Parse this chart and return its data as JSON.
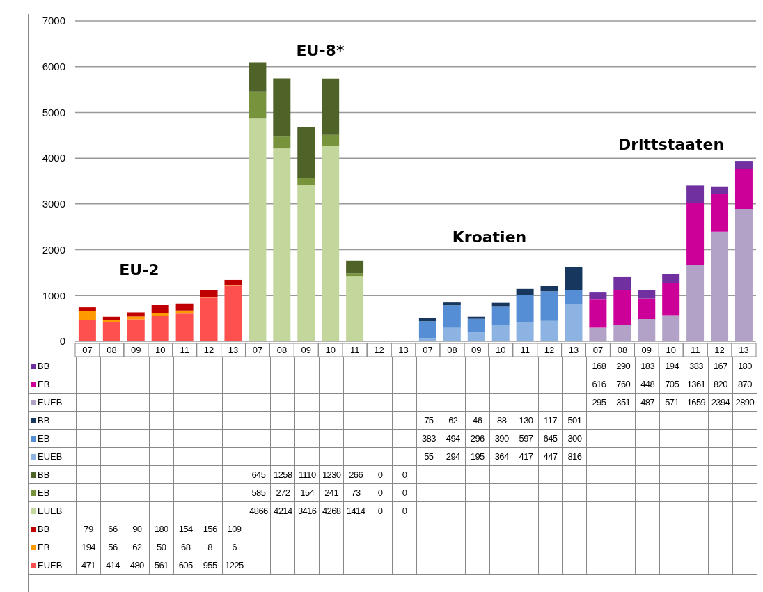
{
  "chart_data": {
    "type": "bar",
    "stacked": true,
    "categories": [
      "07",
      "08",
      "09",
      "10",
      "11",
      "12",
      "13",
      "07",
      "08",
      "09",
      "10",
      "11",
      "12",
      "13",
      "07",
      "08",
      "09",
      "10",
      "11",
      "12",
      "13",
      "07",
      "08",
      "09",
      "10",
      "11",
      "12",
      "13"
    ],
    "series": [
      {
        "name": "EUEB",
        "color": "#ff5050",
        "values": [
          471,
          414,
          480,
          561,
          605,
          955,
          1225,
          null,
          null,
          null,
          null,
          null,
          null,
          null,
          null,
          null,
          null,
          null,
          null,
          null,
          null,
          null,
          null,
          null,
          null,
          null,
          null,
          null
        ]
      },
      {
        "name": "EB",
        "color": "#ff9900",
        "values": [
          194,
          56,
          62,
          50,
          68,
          8,
          6,
          null,
          null,
          null,
          null,
          null,
          null,
          null,
          null,
          null,
          null,
          null,
          null,
          null,
          null,
          null,
          null,
          null,
          null,
          null,
          null,
          null
        ]
      },
      {
        "name": "BB",
        "color": "#c00000",
        "values": [
          79,
          66,
          90,
          180,
          154,
          156,
          109,
          null,
          null,
          null,
          null,
          null,
          null,
          null,
          null,
          null,
          null,
          null,
          null,
          null,
          null,
          null,
          null,
          null,
          null,
          null,
          null,
          null
        ]
      },
      {
        "name": "EUEB",
        "color": "#c3d69b",
        "values": [
          null,
          null,
          null,
          null,
          null,
          null,
          null,
          4866,
          4214,
          3416,
          4268,
          1414,
          0,
          0,
          null,
          null,
          null,
          null,
          null,
          null,
          null,
          null,
          null,
          null,
          null,
          null,
          null,
          null
        ]
      },
      {
        "name": "EB",
        "color": "#77933c",
        "values": [
          null,
          null,
          null,
          null,
          null,
          null,
          null,
          585,
          272,
          154,
          241,
          73,
          0,
          0,
          null,
          null,
          null,
          null,
          null,
          null,
          null,
          null,
          null,
          null,
          null,
          null,
          null,
          null
        ]
      },
      {
        "name": "BB",
        "color": "#4f6228",
        "values": [
          null,
          null,
          null,
          null,
          null,
          null,
          null,
          645,
          1258,
          1110,
          1230,
          266,
          0,
          0,
          null,
          null,
          null,
          null,
          null,
          null,
          null,
          null,
          null,
          null,
          null,
          null,
          null,
          null
        ]
      },
      {
        "name": "EUEB",
        "color": "#8db3e2",
        "values": [
          null,
          null,
          null,
          null,
          null,
          null,
          null,
          null,
          null,
          null,
          null,
          null,
          null,
          null,
          55,
          294,
          195,
          364,
          417,
          447,
          816,
          null,
          null,
          null,
          null,
          null,
          null,
          null
        ]
      },
      {
        "name": "EB",
        "color": "#558ed5",
        "values": [
          null,
          null,
          null,
          null,
          null,
          null,
          null,
          null,
          null,
          null,
          null,
          null,
          null,
          null,
          383,
          494,
          296,
          390,
          597,
          645,
          300,
          null,
          null,
          null,
          null,
          null,
          null,
          null
        ]
      },
      {
        "name": "BB",
        "color": "#17375e",
        "values": [
          null,
          null,
          null,
          null,
          null,
          null,
          null,
          null,
          null,
          null,
          null,
          null,
          null,
          null,
          75,
          62,
          46,
          88,
          130,
          117,
          501,
          null,
          null,
          null,
          null,
          null,
          null,
          null
        ]
      },
      {
        "name": "EUEB",
        "color": "#b3a2c7",
        "values": [
          null,
          null,
          null,
          null,
          null,
          null,
          null,
          null,
          null,
          null,
          null,
          null,
          null,
          null,
          null,
          null,
          null,
          null,
          null,
          null,
          null,
          295,
          351,
          487,
          571,
          1659,
          2394,
          2890
        ]
      },
      {
        "name": "EB",
        "color": "#cc0099",
        "values": [
          null,
          null,
          null,
          null,
          null,
          null,
          null,
          null,
          null,
          null,
          null,
          null,
          null,
          null,
          null,
          null,
          null,
          null,
          null,
          null,
          null,
          616,
          760,
          448,
          705,
          1361,
          820,
          870
        ]
      },
      {
        "name": "BB",
        "color": "#7030a0",
        "values": [
          null,
          null,
          null,
          null,
          null,
          null,
          null,
          null,
          null,
          null,
          null,
          null,
          null,
          null,
          null,
          null,
          null,
          null,
          null,
          null,
          null,
          168,
          290,
          183,
          194,
          383,
          167,
          180
        ]
      }
    ],
    "ylim": [
      0,
      7000
    ],
    "yticks": [
      0,
      1000,
      2000,
      3000,
      4000,
      5000,
      6000,
      7000
    ],
    "grid": "y",
    "legend": "bottom",
    "data_labels": true,
    "annotations": [
      "EU-2",
      "EU-8*",
      "Kroatien",
      "Drittstaaten"
    ]
  }
}
